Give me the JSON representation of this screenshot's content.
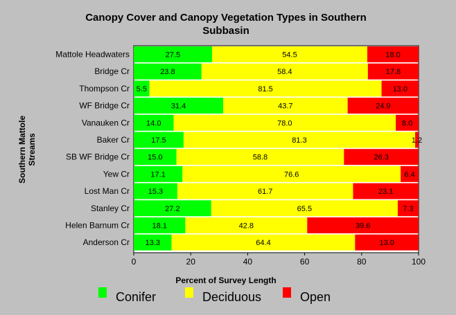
{
  "chart_data": {
    "type": "bar",
    "stacked": true,
    "orientation": "horizontal",
    "title_lines": [
      "Canopy Cover and Canopy Vegetation Types in Southern",
      "Subbasin"
    ],
    "ylabel_lines": [
      "Southern Mattole",
      "Streams"
    ],
    "xlabel": "Percent of Survey Length",
    "xlim": [
      0,
      100
    ],
    "xticks": [
      "0",
      "20",
      "40",
      "60",
      "80",
      "100"
    ],
    "grid": false,
    "legend_position": "bottom",
    "categories": [
      "Mattole Headwaters",
      "Bridge Cr",
      "Thompson Cr",
      "WF Bridge Cr",
      "Vanauken Cr",
      "Baker Cr",
      "SB WF Bridge Cr",
      "Yew Cr",
      "Lost Man Cr",
      "Stanley Cr",
      "Helen Barnum Cr",
      "Anderson Cr"
    ],
    "series": [
      {
        "name": "Conifer",
        "color": "#00ff00",
        "values": [
          27.5,
          23.8,
          5.5,
          31.4,
          14.0,
          17.5,
          15.0,
          17.1,
          15.3,
          27.2,
          18.1,
          13.3
        ],
        "labels": [
          "27.5",
          "23.8",
          "5.5",
          "31.4",
          "14.0",
          "17.5",
          "15.0",
          "17.1",
          "15.3",
          "27.2",
          "18.1",
          "13.3"
        ]
      },
      {
        "name": "Deciduous",
        "color": "#ffff00",
        "values": [
          54.5,
          58.4,
          81.5,
          43.7,
          78.0,
          81.3,
          58.8,
          76.6,
          61.7,
          65.5,
          42.8,
          64.4
        ],
        "labels": [
          "54.5",
          "58.4",
          "81.5",
          "43.7",
          "78.0",
          "81.3",
          "58.8",
          "76.6",
          "61.7",
          "65.5",
          "42.8",
          "64.4"
        ]
      },
      {
        "name": "Open",
        "color": "#ff0000",
        "values": [
          18.0,
          17.8,
          13.0,
          24.9,
          8.0,
          1.2,
          26.3,
          6.4,
          23.1,
          7.3,
          39.6,
          13.0
        ],
        "labels": [
          "18.0",
          "17.8",
          "13.0",
          "24.9",
          "8.0",
          "1.2",
          "26.3",
          "6.4",
          "23.1",
          "7.3",
          "39.6",
          "13.0"
        ]
      }
    ]
  }
}
